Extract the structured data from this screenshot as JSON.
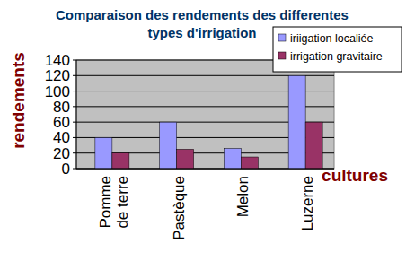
{
  "chart_data": {
    "type": "bar",
    "title": "Comparaison des rendements des differentes types d'irrigation",
    "y_label": "rendements",
    "x_label": "cultures",
    "categories": [
      "Pomme de terre",
      "Pastèque",
      "Melon",
      "Luzerne"
    ],
    "series": [
      {
        "name": "iriigation localiée",
        "color": "#9999ff",
        "values": [
          40,
          60,
          26,
          120
        ]
      },
      {
        "name": "irrigation gravitaire",
        "color": "#993366",
        "values": [
          20,
          25,
          15,
          60
        ]
      }
    ],
    "ylim": [
      0,
      140
    ],
    "yticks": [
      0,
      20,
      40,
      60,
      80,
      100,
      120,
      140
    ],
    "grid": true,
    "legend": "top-right"
  }
}
